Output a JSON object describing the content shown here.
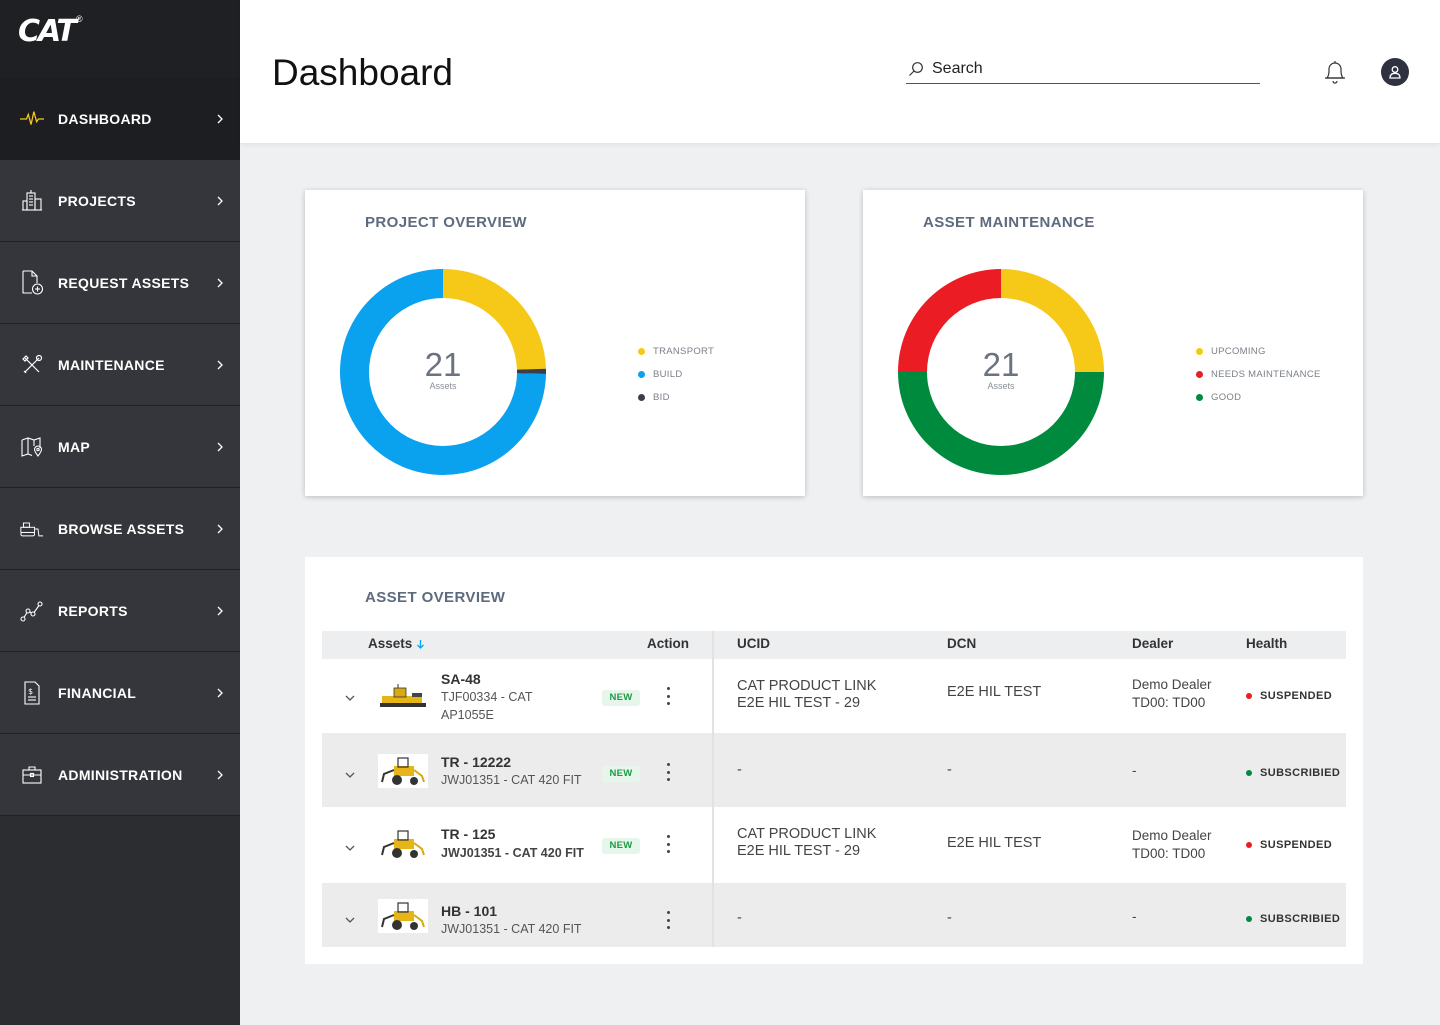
{
  "brand": {
    "logo": "CAT",
    "reg": "®"
  },
  "sidebar": {
    "items": [
      {
        "label": "DASHBOARD",
        "icon": "pulse-icon"
      },
      {
        "label": "PROJECTS",
        "icon": "buildings-icon"
      },
      {
        "label": "REQUEST ASSETS",
        "icon": "document-add-icon"
      },
      {
        "label": "MAINTENANCE",
        "icon": "tools-icon"
      },
      {
        "label": "MAP",
        "icon": "map-icon"
      },
      {
        "label": "BROWSE ASSETS",
        "icon": "bulldozer-icon"
      },
      {
        "label": "REPORTS",
        "icon": "graph-icon"
      },
      {
        "label": "FINANCIAL",
        "icon": "invoice-icon"
      },
      {
        "label": "ADMINISTRATION",
        "icon": "briefcase-icon"
      }
    ]
  },
  "header": {
    "title": "Dashboard",
    "search_placeholder": "Search"
  },
  "project_overview": {
    "title": "PROJECT OVERVIEW",
    "total": "21",
    "unit": "Assets",
    "legend": [
      "TRANSPORT",
      "BUILD",
      "BID"
    ],
    "segments": [
      {
        "label": "TRANSPORT",
        "value": 0.245,
        "color": "#f6c817"
      },
      {
        "label": "BID",
        "value": 0.008,
        "color": "#3b3f4a"
      },
      {
        "label": "BUILD",
        "value": 0.747,
        "color": "#0aa1ee"
      }
    ]
  },
  "asset_maintenance": {
    "title": "ASSET MAINTENANCE",
    "total": "21",
    "unit": "Assets",
    "legend": [
      "UPCOMING",
      "NEEDS MAINTENANCE",
      "GOOD"
    ],
    "segments": [
      {
        "label": "UPCOMING",
        "value": 0.25,
        "color": "#f6c817"
      },
      {
        "label": "GOOD",
        "value": 0.5,
        "color": "#008a3e"
      },
      {
        "label": "NEEDS MAINTENANCE",
        "value": 0.25,
        "color": "#ec1c24"
      }
    ]
  },
  "colors": {
    "yellow": "#f6c817",
    "blue": "#0aa1ee",
    "dark": "#3b3f4a",
    "red": "#ec1c24",
    "green": "#008a3e"
  },
  "asset_overview": {
    "title": "ASSET OVERVIEW",
    "columns": {
      "assets": "Assets",
      "action": "Action",
      "ucid": "UCID",
      "dcn": "DCN",
      "dealer": "Dealer",
      "health": "Health"
    },
    "rows": [
      {
        "name": "SA-48",
        "sub1": "TJF00334 - CAT",
        "sub2": "AP1055E",
        "badge": "NEW",
        "ucid1": "CAT PRODUCT LINK",
        "ucid2": "E2E HIL TEST - 29",
        "dcn": "E2E HIL TEST",
        "dealer1": "Demo Dealer",
        "dealer2": "TD00: TD00",
        "health": "SUSPENDED"
      },
      {
        "name": "TR - 12222",
        "sub1": "JWJ01351 - CAT 420 FIT",
        "badge": "NEW",
        "ucid1": "-",
        "dcn": "-",
        "dealer1": "-",
        "health": "SUBSCRIBIED"
      },
      {
        "name": "TR - 125",
        "sub1": "JWJ01351 - CAT 420 FIT",
        "badge": "NEW",
        "ucid1": "CAT PRODUCT LINK",
        "ucid2": "E2E HIL TEST - 29",
        "dcn": "E2E HIL TEST",
        "dealer1": "Demo Dealer",
        "dealer2": "TD00: TD00",
        "health": "SUSPENDED"
      },
      {
        "name": "HB - 101",
        "sub1": "JWJ01351 - CAT 420 FIT",
        "ucid1": "-",
        "dcn": "-",
        "dealer1": "-",
        "health": "SUBSCRIBIED"
      }
    ]
  }
}
